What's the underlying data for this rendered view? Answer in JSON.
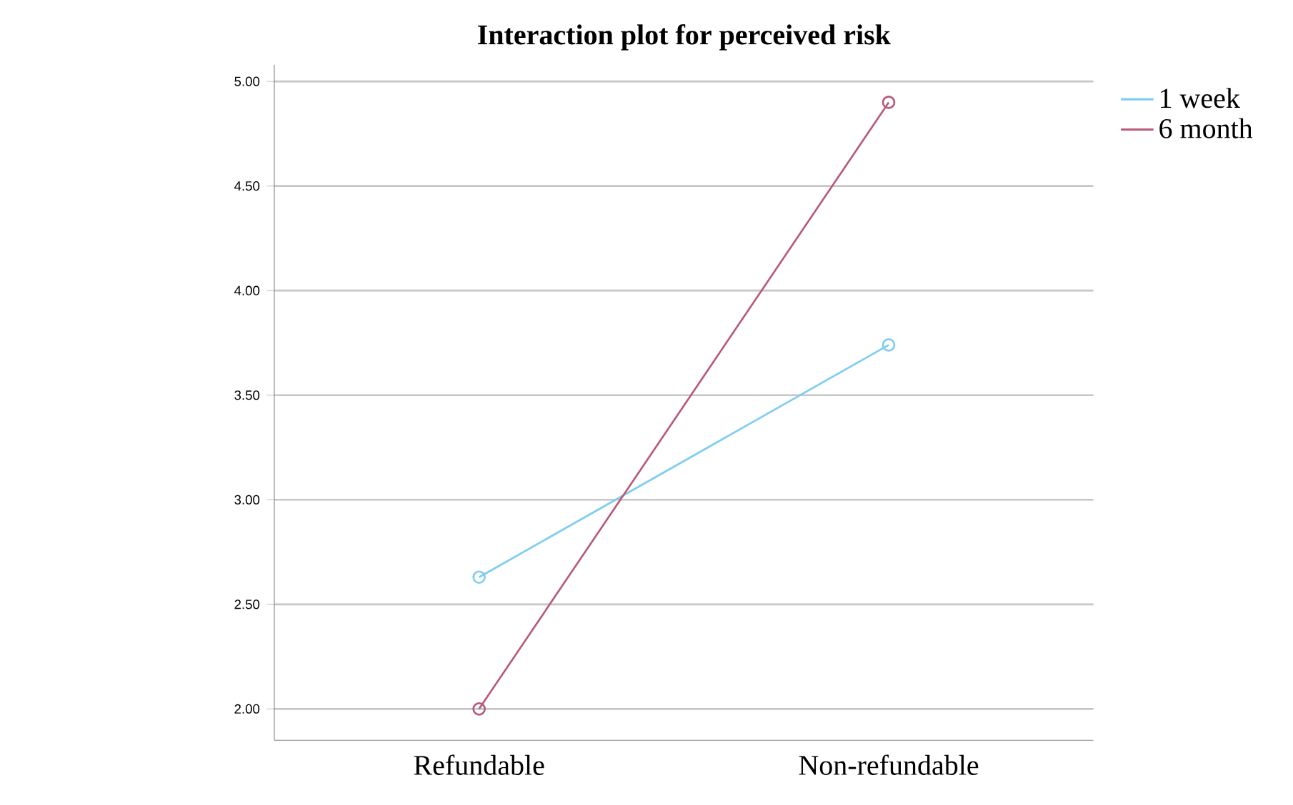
{
  "chart_data": {
    "type": "line",
    "title": "Interaction plot for perceived risk",
    "categories": [
      "Refundable",
      "Non-refundable"
    ],
    "series": [
      {
        "name": "1 week",
        "color": "#7fcdf0",
        "values": [
          2.63,
          3.74
        ]
      },
      {
        "name": "6 month",
        "color": "#b85a78",
        "values": [
          2.0,
          4.9
        ]
      }
    ],
    "ylim": [
      1.85,
      5.08
    ],
    "yticks": [
      {
        "value": 2,
        "label": "2.00"
      },
      {
        "value": 2.5,
        "label": "2.50"
      },
      {
        "value": 3,
        "label": "3.00"
      },
      {
        "value": 3.5,
        "label": "3.50"
      },
      {
        "value": 4,
        "label": "4.00"
      },
      {
        "value": 4.5,
        "label": "4.50"
      },
      {
        "value": 5,
        "label": "5.00"
      }
    ],
    "grid": "y",
    "legend": "top right",
    "marker": "circle",
    "line_style": "solid"
  }
}
